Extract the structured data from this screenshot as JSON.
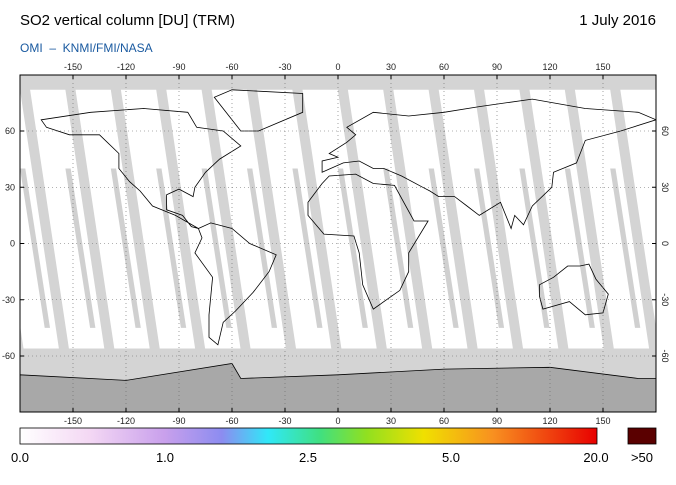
{
  "header": {
    "title": "SO2 vertical column [DU] (TRM)",
    "date": "1 July 2016",
    "source": "OMI  –  KNMI/FMI/NASA"
  },
  "map": {
    "lon_ticks": [
      -150,
      -120,
      -90,
      -60,
      -30,
      0,
      30,
      60,
      90,
      120,
      150
    ],
    "lat_ticks": [
      60,
      30,
      0,
      -30,
      -60
    ]
  },
  "colorbar": {
    "labels": [
      "0.0",
      "1.0",
      "2.5",
      "5.0",
      "20.0"
    ],
    "over_label": ">50"
  }
}
